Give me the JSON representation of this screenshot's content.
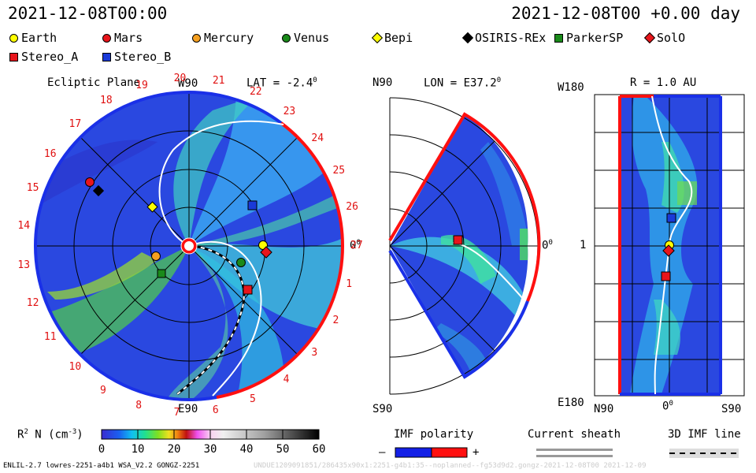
{
  "header": {
    "date_left": "2021-12-08T00:00",
    "date_right": "2021-12-08T00 +0.00 day"
  },
  "legend": [
    {
      "name": "Earth",
      "shape": "circle",
      "color": "#ffff00"
    },
    {
      "name": "Mars",
      "shape": "circle",
      "color": "#e8151b"
    },
    {
      "name": "Mercury",
      "shape": "circle",
      "color": "#f5a020"
    },
    {
      "name": "Venus",
      "shape": "circle",
      "color": "#1a8a1a"
    },
    {
      "name": "Bepi",
      "shape": "diamond",
      "color": "#ffff00"
    },
    {
      "name": "OSIRIS-REx",
      "shape": "diamond",
      "color": "#000000"
    },
    {
      "name": "ParkerSP",
      "shape": "square",
      "color": "#1a8a1a"
    },
    {
      "name": "SolO",
      "shape": "diamond",
      "color": "#e8151b"
    },
    {
      "name": "Stereo_A",
      "shape": "square",
      "color": "#e8151b"
    },
    {
      "name": "Stereo_B",
      "shape": "square",
      "color": "#1a3ad8"
    }
  ],
  "ecliptic": {
    "title": "Ecliptic Plane",
    "top_label": "W90",
    "bottom_label": "E90",
    "right_label": "0",
    "right_sup": "0",
    "lat_label": "LAT = -2.4",
    "lat_sup": "0",
    "carrington_ticks": [
      "1",
      "2",
      "3",
      "4",
      "5",
      "6",
      "7",
      "8",
      "9",
      "10",
      "11",
      "12",
      "13",
      "14",
      "15",
      "16",
      "17",
      "18",
      "19",
      "20",
      "21",
      "22",
      "23",
      "24",
      "25",
      "26",
      "27"
    ]
  },
  "meridional": {
    "top_label": "N90",
    "bottom_label": "S90",
    "lon_label": "LON = E37.2",
    "lon_sup": "0",
    "right_label": "0",
    "right_sup": "0"
  },
  "radial": {
    "title": "R = 1.0 AU",
    "top_left": "W180",
    "bottom_left": "E180",
    "mid_left": "1",
    "x_left": "N90",
    "x_mid": "0",
    "x_mid_sup": "0",
    "x_right": "S90"
  },
  "colorbar": {
    "label": "R",
    "label_sup": "2",
    "label_rest": " N (cm",
    "label_sup2": "-3",
    "label_end": ")",
    "ticks": [
      "0",
      "10",
      "20",
      "30",
      "40",
      "50",
      "60"
    ]
  },
  "imf": {
    "title": "IMF polarity",
    "minus": "–",
    "plus": "+",
    "colors": [
      "#1420e6",
      "#ff1010"
    ]
  },
  "current_sheath": {
    "title": "Current sheath"
  },
  "imf3d": {
    "title": "3D IMF line"
  },
  "footer": {
    "left": "ENLIL-2.7 lowres-2251-a4b1 WSA_V2.2 GONGZ-2251",
    "right": "UNDUE1209091851/286435x90x1:2251-g4b1:35--noplanned--fg53d9d2.gongz-2021-12-08T00   2021-12-09"
  }
}
